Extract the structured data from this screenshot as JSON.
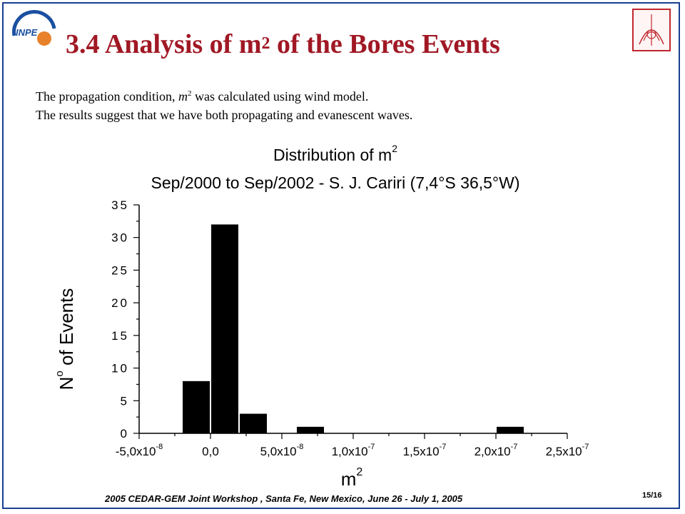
{
  "slide": {
    "title_main": "3.4 Analysis of m",
    "title_sup": "2",
    "title_rest": " of the Bores Events",
    "logo_left_text": "INPE",
    "intro_line1_a": "The propagation condition, ",
    "intro_line1_m": "m",
    "intro_line1_sup": "2",
    "intro_line1_b": " was calculated using wind model.",
    "intro_line2": "The results suggest that we have both propagating and evanescent waves.",
    "footer": "2005 CEDAR-GEM Joint Workshop , Santa Fe, New Mexico, June 26 - July 1, 2005",
    "page_number": "15/16"
  },
  "colors": {
    "frame": "#1a3f8f",
    "title": "#a01824",
    "bars": "#000000",
    "logo_left": "#1a4fa0",
    "logo_right": "#c0282e"
  },
  "chart_data": {
    "type": "bar",
    "title_line1_main": "Distribution of m",
    "title_line1_sup": "2",
    "title_line2": "Sep/2000 to Sep/2002 - S. J. Cariri (7,4°S  36,5°W)",
    "xlabel_main": "m",
    "xlabel_sup": "2",
    "ylabel_main": "N",
    "ylabel_sup": "o",
    "ylabel_rest": " of Events",
    "ylim": [
      0,
      35
    ],
    "xlim": [
      -5e-08,
      2.5e-07
    ],
    "yticks": [
      "0",
      "5",
      "10",
      "15",
      "20",
      "25",
      "30",
      "35"
    ],
    "xticks": [
      {
        "mant": "-5,0x10",
        "exp": "-8"
      },
      {
        "mant": "0,0",
        "exp": ""
      },
      {
        "mant": "5,0x10",
        "exp": "-8"
      },
      {
        "mant": "1,0x10",
        "exp": "-7"
      },
      {
        "mant": "1,5x10",
        "exp": "-7"
      },
      {
        "mant": "2,0x10",
        "exp": "-7"
      },
      {
        "mant": "2,5x10",
        "exp": "-7"
      }
    ],
    "bin_width": 2e-08,
    "bins": [
      {
        "start": -2e-08,
        "count": 8
      },
      {
        "start": 0.0,
        "count": 32
      },
      {
        "start": 2e-08,
        "count": 3
      },
      {
        "start": 6e-08,
        "count": 1
      },
      {
        "start": 2e-07,
        "count": 1
      }
    ],
    "grid": false
  }
}
